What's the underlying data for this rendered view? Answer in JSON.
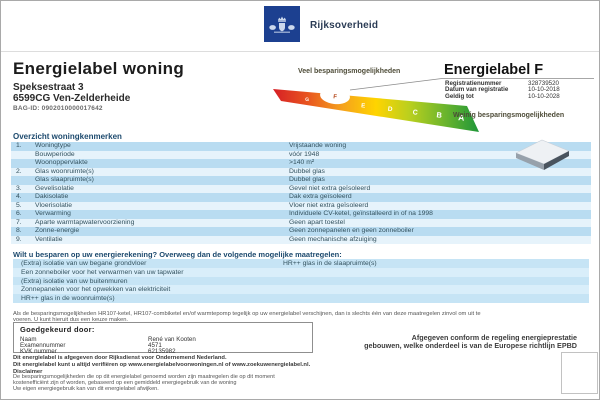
{
  "header": {
    "logo_word": "Rijksoverheid"
  },
  "title_block": {
    "title": "Energielabel woning",
    "address_line1": "Speksestraat 3",
    "address_line2": "6599CG Ven-Zelderheide",
    "bag_id": "BAG-ID: 0902010000017642"
  },
  "label_block": {
    "heading": "Energielabel F",
    "label_letter": "F",
    "veel_text": "Veel besparingsmogelijkheden",
    "weinig_text": "Weinig besparingsmogelijkheden",
    "scale_letters": [
      "G",
      "F",
      "E",
      "D",
      "C",
      "B",
      "A"
    ],
    "fields": [
      {
        "label": "Registratienummer",
        "value": "328739520"
      },
      {
        "label": "Datum van registratie",
        "value": "10-10-2018"
      },
      {
        "label": "Geldig tot",
        "value": "10-10-2028"
      }
    ]
  },
  "table": {
    "heading": "Overzicht woningkenmerken",
    "rows": [
      {
        "num": "1.",
        "label": "Woningtype",
        "value": "Vrijstaande woning"
      },
      {
        "num": "",
        "label": "Bouwperiode",
        "value": "vóór 1948"
      },
      {
        "num": "",
        "label": "Woonoppervlakte",
        "value": ">140 m²"
      },
      {
        "num": "2.",
        "label": "Glas woonruimte(s)",
        "value": "Dubbel glas"
      },
      {
        "num": "",
        "label": "Glas slaapruimte(s)",
        "value": "Dubbel glas"
      },
      {
        "num": "3.",
        "label": "Gevelisolatie",
        "value": "Gevel niet extra geïsoleerd"
      },
      {
        "num": "4.",
        "label": "Dakisolatie",
        "value": "Dak extra geïsoleerd"
      },
      {
        "num": "5.",
        "label": "Vloerisolatie",
        "value": "Vloer niet extra geïsoleerd"
      },
      {
        "num": "6.",
        "label": "Verwarming",
        "value": "Individuele CV-ketel, geïnstalleerd in of na 1998"
      },
      {
        "num": "7.",
        "label": "Aparte warmtapwatervoorziening",
        "value": "Geen apart toestel"
      },
      {
        "num": "8.",
        "label": "Zonne-energie",
        "value": "Geen zonnepanelen en geen zonneboiler"
      },
      {
        "num": "9.",
        "label": "Ventilatie",
        "value": "Geen mechanische afzuiging"
      }
    ]
  },
  "measures": {
    "heading": "Wilt u besparen op uw energierekening? Overweeg dan de volgende mogelijke maatregelen:",
    "rows": [
      {
        "left": "(Extra) isolatie van uw begane grondvloer",
        "right": "HR++ glas in de slaapruimte(s)"
      },
      {
        "left": "Een zonneboiler voor het verwarmen van uw tapwater",
        "right": ""
      },
      {
        "left": "(Extra) isolatie van uw buitenmuren",
        "right": ""
      },
      {
        "left": "Zonnepanelen voor het opwekken van elektriciteit",
        "right": ""
      },
      {
        "left": "HR++ glas in de woonruimte(s)",
        "right": ""
      }
    ],
    "footnote_lines": [
      "Als de besparingsmogelijkheden HR107-ketel, HR107-combiketel en/of warmtepomp tegelijk op uw energielabel verschijnen, dan is slechts één van deze maatregelen zinvol om uit te",
      "voeren. U kunt hieruit dus een keuze maken."
    ]
  },
  "approval": {
    "heading": "Goedgekeurd door:",
    "fields": [
      {
        "label": "Naam",
        "value": "René van Kooten"
      },
      {
        "label": "Examennummer",
        "value": "4571"
      },
      {
        "label": "KVK nummer",
        "value": "62135982"
      }
    ]
  },
  "conform_lines": [
    "Afgegeven conform de regeling energieprestatie",
    "gebouwen, welke onderdeel is van de Europese richtlijn EPBD"
  ],
  "footer": {
    "line1": "Dit energielabel is afgegeven door Rijksdienst voor Ondernemend Nederland.",
    "line2": "Dit energielabel kunt u altijd verifiëren op www.energielabelvoorwoningen.nl of www.zoekuwenergielabel.nl.",
    "disclaimer_heading": "Disclaimer",
    "disclaimer_lines": [
      "De besparingsmogelijkheden die op dit energielabel genoemd worden zijn maatregelen die op dit moment",
      "kostenefficiënt zijn of worden, gebaseerd op een gemiddeld energiegebruik van de woning",
      "Uw eigen energiegebruik kan van dit energielabel afwijken."
    ]
  },
  "icons": {
    "logo_emblem": "rijksoverheid-coat-of-arms",
    "house": "detached-house-3d",
    "scale": "energy-scale-ribbon"
  },
  "colors": {
    "logo_blue": "#1c4090",
    "table_stripe_dark": "#b9dcf1",
    "table_stripe_light": "#e6f3fb",
    "scale_gradient": [
      "#d61f26",
      "#e8541f",
      "#f5a11d",
      "#ffd400",
      "#b8cf1f",
      "#6cb52d",
      "#1e9639"
    ]
  }
}
